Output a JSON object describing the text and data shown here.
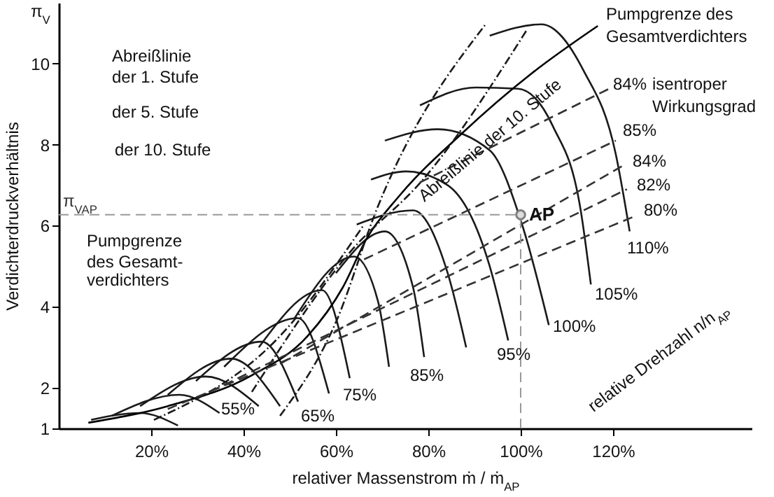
{
  "chart_data": {
    "type": "line",
    "xlabel": "relativer Massenstrom  ṁ / ṁ$_{AP}$",
    "ylabel": "Verdichterdruckverhältnis",
    "xlim": [
      0,
      150
    ],
    "ylim": [
      1,
      11.5
    ],
    "xticks": [
      {
        "value": 20,
        "label": "20%"
      },
      {
        "value": 40,
        "label": "40%"
      },
      {
        "value": 60,
        "label": "60%"
      },
      {
        "value": 80,
        "label": "80%"
      },
      {
        "value": 100,
        "label": "100%"
      },
      {
        "value": 120,
        "label": "120%"
      }
    ],
    "yticks": [
      1,
      2,
      4,
      6,
      8,
      10
    ],
    "grid": false,
    "series": [
      {
        "color": "#1a1a1a",
        "line_style": "solid",
        "x": [
          7.0,
          17.6,
          25.8
        ],
        "values": [
          1.21,
          1.38,
          1.07
        ]
      },
      {
        "color": "#1a1a1a",
        "line_style": "solid",
        "x": [
          11.5,
          26.1,
          34.8
        ],
        "values": [
          1.31,
          1.83,
          1.38
        ]
      },
      {
        "color": "#1a1a1a",
        "line_style": "solid",
        "x": [
          17.6,
          31.8,
          43.3
        ],
        "values": [
          1.55,
          2.28,
          1.55
        ]
      },
      {
        "color": "#1a1a1a",
        "line_style": "solid",
        "x": [
          23.6,
          37.3,
          47.9
        ],
        "values": [
          1.83,
          2.72,
          1.55
        ]
      },
      {
        "color": "#1a1a1a",
        "line_style": "solid",
        "x": [
          29.7,
          43.9,
          51.8
        ],
        "values": [
          2.17,
          3.14,
          1.66
        ]
      },
      {
        "color": "#1a1a1a",
        "line_style": "solid",
        "x": [
          35.8,
          51.8,
          58.5
        ],
        "values": [
          2.52,
          3.72,
          1.86
        ]
      },
      {
        "color": "#1a1a1a",
        "line_style": "solid",
        "x": [
          43.3,
          57.0,
          63.0
        ],
        "values": [
          3.0,
          4.41,
          2.24
        ]
      },
      {
        "color": "#1a1a1a",
        "line_style": "solid",
        "x": [
          50.9,
          63.9,
          69.1,
          71.5
        ],
        "values": [
          3.69,
          5.24,
          4.14,
          2.52
        ]
      },
      {
        "color": "#1a1a1a",
        "line_style": "solid",
        "x": [
          60.0,
          70.6,
          76.7,
          79.1
        ],
        "values": [
          4.83,
          5.86,
          4.48,
          2.76
        ]
      },
      {
        "color": "#1a1a1a",
        "line_style": "solid",
        "x": [
          64.5,
          76.7,
          84.2,
          88.2
        ],
        "values": [
          6.03,
          6.38,
          4.83,
          3.0
        ]
      },
      {
        "color": "#1a1a1a",
        "line_style": "solid",
        "x": [
          67.6,
          75.2,
          84.2,
          93.3,
          97.3
        ],
        "values": [
          7.14,
          7.34,
          7.0,
          5.0,
          3.17
        ]
      },
      {
        "color": "#1a1a1a",
        "line_style": "solid",
        "x": [
          70.6,
          82.1,
          93.3,
          100.3,
          106.1
        ],
        "values": [
          8.1,
          8.38,
          7.86,
          6.03,
          3.55
        ]
      },
      {
        "color": "#1a1a1a",
        "line_style": "solid",
        "x": [
          78.2,
          90.3,
          99.4,
          107.0,
          113.0,
          115.2
        ],
        "values": [
          8.97,
          9.41,
          9.38,
          8.45,
          6.38,
          4.55
        ]
      },
      {
        "color": "#1a1a1a",
        "line_style": "solid",
        "x": [
          93.3,
          104.5,
          113.6,
          120.6,
          123.6
        ],
        "values": [
          10.69,
          10.97,
          9.83,
          7.76,
          5.86
        ]
      },
      {
        "color": "#000000",
        "line_style": "solid",
        "x": [
          6.4,
          23.6,
          41.8,
          53.9,
          61.5,
          66.7,
          73.6,
          87.3,
          102.4,
          116.7
        ],
        "values": [
          1.14,
          1.55,
          2.31,
          3.28,
          4.48,
          5.69,
          6.72,
          8.28,
          9.76,
          10.93
        ]
      },
      {
        "color": "#1a1a1a",
        "line_style": "dotted",
        "x": [
          47.9,
          60.0,
          69.1,
          92.4
        ],
        "values": [
          1.31,
          3.62,
          6.48,
          10.97
        ]
      },
      {
        "color": "#1a1a1a",
        "line_style": "dotted",
        "x": [
          41.8,
          63.0,
          79.1,
          101.5
        ],
        "values": [
          1.9,
          5.34,
          7.17,
          10.86
        ]
      },
      {
        "color": "#1a1a1a",
        "line_style": "dotted",
        "x": [
          20.6,
          47.9,
          66.1
        ],
        "values": [
          1.21,
          3.28,
          6.03
        ]
      },
      {
        "color": "#333333",
        "line_style": "dashed",
        "x": [
          78.2,
          119.7
        ],
        "values": [
          7.07,
          9.41
        ]
      },
      {
        "color": "#333333",
        "line_style": "dashed",
        "x": [
          66.1,
          120.6
        ],
        "values": [
          5.17,
          8.1
        ]
      },
      {
        "color": "#333333",
        "line_style": "dashed",
        "x": [
          47.9,
          122.1
        ],
        "values": [
          2.59,
          7.48
        ]
      },
      {
        "color": "#333333",
        "line_style": "dashed",
        "x": [
          32.7,
          123.0
        ],
        "values": [
          1.9,
          6.9
        ]
      },
      {
        "color": "#333333",
        "line_style": "dashed",
        "x": [
          23.6,
          124.2
        ],
        "values": [
          1.48,
          6.21
        ]
      },
      {
        "type": "scatter",
        "name": "AP",
        "color": "#808080",
        "marker": "circle",
        "x": [
          100
        ],
        "values": [
          6.27
        ]
      }
    ],
    "ref_lines": [
      {
        "axis": "y",
        "value": 6.27,
        "label": "π$_{V}$$_{AP}$",
        "color": "#999999",
        "line_style": "dashed"
      },
      {
        "axis": "x",
        "value": 100,
        "label": null,
        "color": "#999999",
        "line_style": "dashed"
      }
    ],
    "annotations": [
      "Abreißlinie",
      "der  1. Stufe",
      "der  5. Stufe",
      "der 10. Stufe",
      "Pumpgrenze",
      "des Gesamt-",
      "verdichters",
      "Pumpgrenze des",
      "Gesamtverdichters",
      "84%",
      "isentroper",
      "Wirkungsgrad",
      "85%",
      "84%",
      "82%",
      "80%",
      "55%",
      "65%",
      "75%",
      "85%",
      "95%",
      "100%",
      "105%",
      "110%",
      "Abreißlinie der 10. Stufe",
      "relative Drehzahl n/n$_{AP}$",
      "π$_{V}$"
    ]
  }
}
